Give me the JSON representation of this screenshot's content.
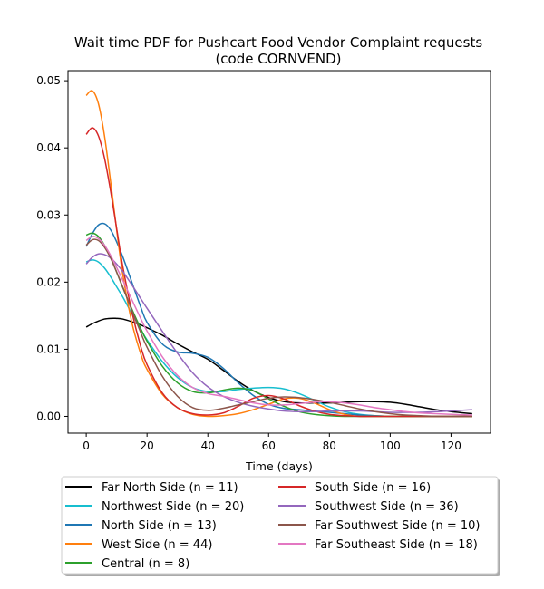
{
  "chart_data": {
    "type": "line",
    "title": "Wait time PDF for Pushcart Food Vendor Complaint  requests",
    "subtitle": "(code CORNVEND)",
    "xlabel": "Time (days)",
    "ylabel": "",
    "xlim": [
      -6,
      133
    ],
    "ylim": [
      -0.0025,
      0.0515
    ],
    "xticks": [
      0,
      20,
      40,
      60,
      80,
      100,
      120
    ],
    "xtick_labels": [
      "0",
      "20",
      "40",
      "60",
      "80",
      "100",
      "120"
    ],
    "yticks": [
      0.0,
      0.01,
      0.02,
      0.03,
      0.04,
      0.05
    ],
    "ytick_labels": [
      "0.00",
      "0.01",
      "0.02",
      "0.03",
      "0.04",
      "0.05"
    ],
    "grid": false,
    "legend_position": "below plot, two columns",
    "x": [
      0,
      2,
      4,
      6,
      8,
      10,
      12,
      15,
      18,
      20,
      25,
      30,
      35,
      40,
      45,
      50,
      55,
      60,
      65,
      70,
      75,
      80,
      85,
      90,
      95,
      100,
      105,
      110,
      115,
      120,
      127
    ],
    "series": [
      {
        "name": "Far North Side (n = 11)",
        "color": "#000000",
        "values": [
          0.0133,
          0.0138,
          0.0142,
          0.0145,
          0.0146,
          0.0146,
          0.0145,
          0.0141,
          0.0136,
          0.0132,
          0.0121,
          0.0108,
          0.0096,
          0.0085,
          0.0069,
          0.0052,
          0.0038,
          0.0028,
          0.0022,
          0.002,
          0.002,
          0.002,
          0.0021,
          0.0022,
          0.0022,
          0.0021,
          0.0018,
          0.0014,
          0.001,
          0.0007,
          0.0004
        ]
      },
      {
        "name": "Northwest Side (n = 20)",
        "color": "#17becf",
        "values": [
          0.023,
          0.0233,
          0.023,
          0.0221,
          0.0208,
          0.0193,
          0.0178,
          0.0153,
          0.0129,
          0.0114,
          0.0082,
          0.0058,
          0.0043,
          0.0037,
          0.0037,
          0.004,
          0.0042,
          0.0043,
          0.0041,
          0.0034,
          0.0024,
          0.0014,
          0.0007,
          0.0003,
          0.0001,
          0.0,
          0.0,
          0.0,
          0.0,
          0.0,
          0.0
        ]
      },
      {
        "name": "North Side (n = 13)",
        "color": "#1f77b4",
        "values": [
          0.0253,
          0.0272,
          0.0285,
          0.0287,
          0.0278,
          0.026,
          0.0238,
          0.02,
          0.0162,
          0.014,
          0.0108,
          0.0096,
          0.0094,
          0.0088,
          0.0072,
          0.005,
          0.0031,
          0.0018,
          0.0012,
          0.001,
          0.0008,
          0.0006,
          0.0004,
          0.0002,
          0.0001,
          0.0,
          0.0,
          0.0,
          0.0,
          0.0,
          0.0
        ]
      },
      {
        "name": "West Side (n = 44)",
        "color": "#ff7f0e",
        "values": [
          0.0478,
          0.0485,
          0.0466,
          0.0418,
          0.035,
          0.0278,
          0.0212,
          0.014,
          0.0092,
          0.007,
          0.0033,
          0.0013,
          0.0003,
          0.0,
          0.0001,
          0.0004,
          0.001,
          0.0018,
          0.0026,
          0.0027,
          0.002,
          0.001,
          0.0003,
          0.0,
          0.0,
          0.0,
          0.0,
          0.0,
          0.0,
          0.0,
          0.0
        ]
      },
      {
        "name": "Central (n = 8)",
        "color": "#2ca02c",
        "values": [
          0.027,
          0.0273,
          0.0268,
          0.0255,
          0.0237,
          0.0215,
          0.0192,
          0.016,
          0.013,
          0.0112,
          0.0075,
          0.005,
          0.0037,
          0.0035,
          0.0039,
          0.0042,
          0.0038,
          0.0026,
          0.0015,
          0.0007,
          0.0003,
          0.0001,
          0.0,
          0.0,
          0.0,
          0.0,
          0.0,
          0.0,
          0.0,
          0.0,
          0.0
        ]
      },
      {
        "name": "South Side (n = 16)",
        "color": "#d62728",
        "values": [
          0.042,
          0.043,
          0.0418,
          0.0385,
          0.0336,
          0.028,
          0.0224,
          0.0156,
          0.0103,
          0.0077,
          0.0035,
          0.0013,
          0.0004,
          0.0002,
          0.0005,
          0.0015,
          0.0027,
          0.0031,
          0.0026,
          0.0016,
          0.0008,
          0.0003,
          0.0001,
          0.0,
          0.0,
          0.0,
          0.0,
          0.0,
          0.0,
          0.0,
          0.0
        ]
      },
      {
        "name": "Southwest Side (n = 36)",
        "color": "#9467bd",
        "values": [
          0.0227,
          0.0237,
          0.0242,
          0.0241,
          0.0236,
          0.0227,
          0.0216,
          0.0196,
          0.0175,
          0.0161,
          0.0127,
          0.0094,
          0.0065,
          0.0044,
          0.003,
          0.0021,
          0.0015,
          0.0011,
          0.0008,
          0.0007,
          0.0007,
          0.0008,
          0.0008,
          0.0008,
          0.0007,
          0.0006,
          0.0006,
          0.0006,
          0.0007,
          0.0008,
          0.001
        ]
      },
      {
        "name": "Far Southwest Side (n = 10)",
        "color": "#8c564b",
        "values": [
          0.0255,
          0.0263,
          0.0262,
          0.0252,
          0.0236,
          0.0215,
          0.0193,
          0.0158,
          0.0124,
          0.0103,
          0.006,
          0.003,
          0.0013,
          0.0009,
          0.0012,
          0.0017,
          0.0022,
          0.0027,
          0.0029,
          0.0028,
          0.0025,
          0.0021,
          0.0016,
          0.0011,
          0.0007,
          0.0004,
          0.0002,
          0.0001,
          0.0,
          0.0,
          0.0
        ]
      },
      {
        "name": "Far Southeast Side (n = 18)",
        "color": "#e377c2",
        "values": [
          0.0262,
          0.0268,
          0.0265,
          0.0255,
          0.024,
          0.0222,
          0.0203,
          0.0174,
          0.0145,
          0.0127,
          0.0089,
          0.0061,
          0.0043,
          0.0034,
          0.003,
          0.0025,
          0.002,
          0.0017,
          0.0017,
          0.0019,
          0.0021,
          0.0022,
          0.002,
          0.0017,
          0.0013,
          0.001,
          0.0007,
          0.0005,
          0.0004,
          0.0003,
          0.0002
        ]
      }
    ]
  }
}
